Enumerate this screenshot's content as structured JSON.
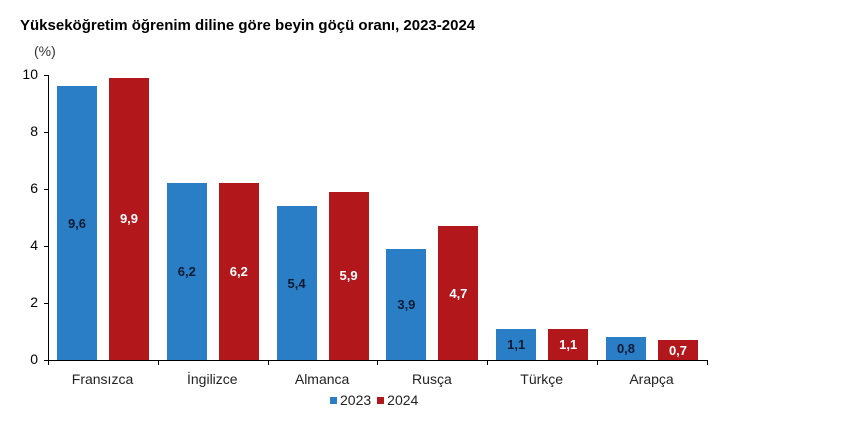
{
  "chart_data": {
    "type": "bar",
    "title": "Yükseköğretim öğrenim diline göre beyin göçü oranı, 2023-2024",
    "ylabel": "(%)",
    "xlabel": "",
    "ylim": [
      0,
      10
    ],
    "yticks": [
      "0",
      "2",
      "4",
      "6",
      "8",
      "10"
    ],
    "grid": false,
    "legend_position": "bottom",
    "categories": [
      "Fransızca",
      "İngilizce",
      "Almanca",
      "Rusça",
      "Türkçe",
      "Arapça"
    ],
    "series": [
      {
        "name": "2023",
        "color": "#2a7ec6",
        "label_color": "#0d1a33",
        "values": [
          9.6,
          6.2,
          5.4,
          3.9,
          1.1,
          0.8
        ],
        "labels": [
          "9,6",
          "6,2",
          "5,4",
          "3,9",
          "1,1",
          "0,8"
        ]
      },
      {
        "name": "2024",
        "color": "#b2171c",
        "label_color": "#ffffff",
        "values": [
          9.9,
          6.2,
          5.9,
          4.7,
          1.1,
          0.7
        ],
        "labels": [
          "9,9",
          "6,2",
          "5,9",
          "4,7",
          "1,1",
          "0,7"
        ]
      }
    ]
  }
}
